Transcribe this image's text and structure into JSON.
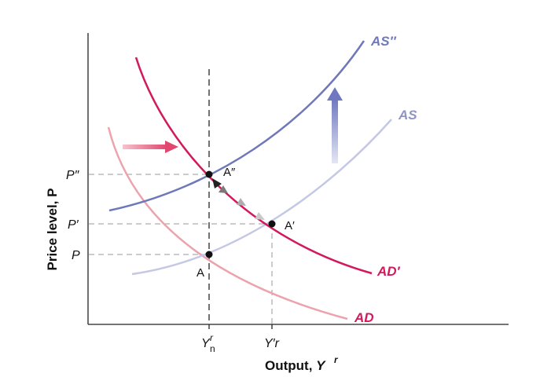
{
  "axes": {
    "y_title": "Price level, P",
    "x_title_main": "Output, ",
    "x_title_sym": "Y",
    "x_title_sup": "r"
  },
  "y_ticks": {
    "p2": "P″",
    "p1": "P′",
    "p0": "P"
  },
  "x_ticks": {
    "yn_main": "Y",
    "yn_sup": "r",
    "yn_sub": "n",
    "y1_main": "Y′r"
  },
  "points": {
    "a": "A",
    "a1": "A′",
    "a2": "A″"
  },
  "curves": {
    "as2": {
      "label": "AS″",
      "color": "#6f78b8"
    },
    "as": {
      "label": "AS",
      "color": "#8e94c8"
    },
    "ad1": {
      "label": "AD′",
      "color": "#d3185c"
    },
    "ad": {
      "label": "AD",
      "color": "#e3737f"
    }
  },
  "colors": {
    "as_curve": "#6f78b8",
    "as_light_curve": "#c4c8e4",
    "ad_curve": "#d3185c",
    "ad_light_curve": "#eca3ad",
    "shift_arrow_right": "#e0567a",
    "shift_arrow_up": "#7880c2",
    "guide_line": "#999999",
    "axis": "#222222"
  },
  "icons": {
    "right_arrow": "shift-right-arrow-icon",
    "up_arrow": "shift-up-arrow-icon",
    "path_arrows": "adjustment-arrowhead-icons"
  }
}
